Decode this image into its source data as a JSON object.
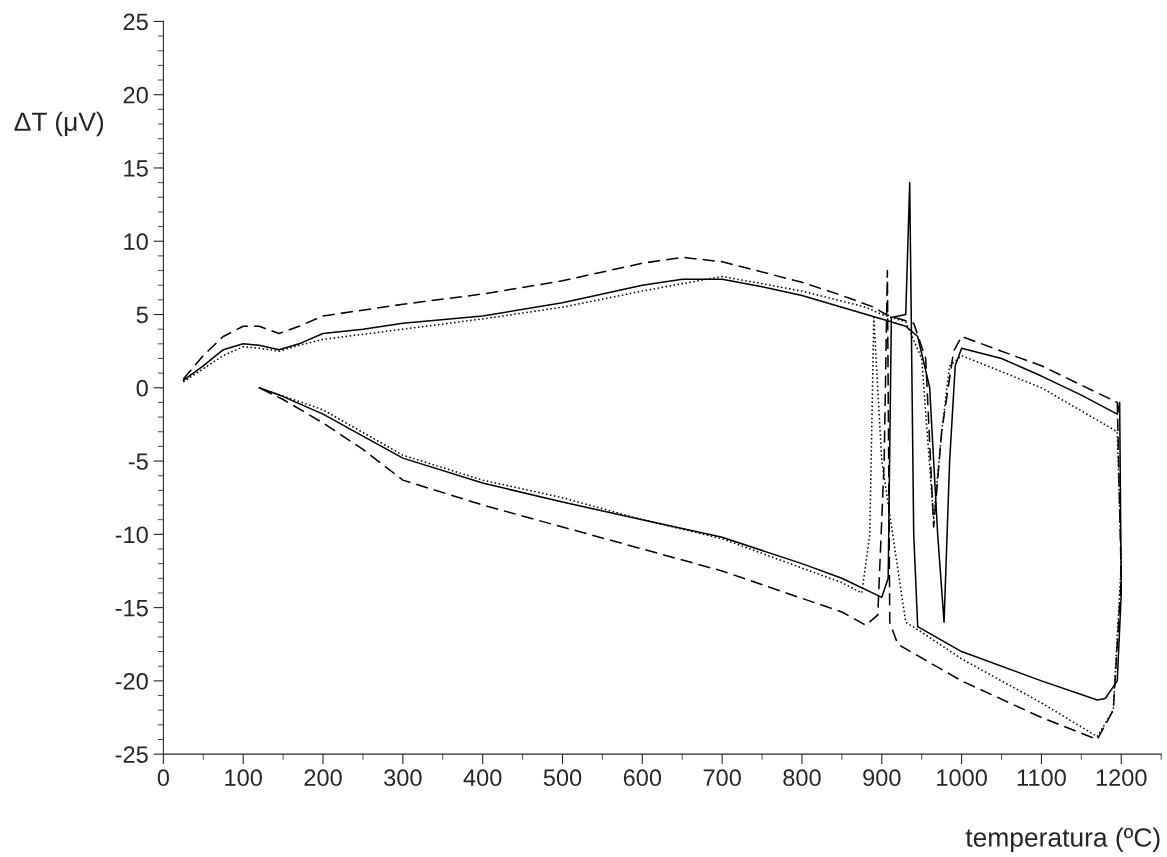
{
  "chart_data": {
    "type": "line",
    "xlabel": "temperatura (ºC)",
    "ylabel": "ΔT (μV)",
    "xlim": [
      0,
      1250
    ],
    "xticks": [
      0,
      100,
      200,
      300,
      400,
      500,
      600,
      700,
      800,
      900,
      1000,
      1100,
      1200
    ],
    "ylim": [
      -25,
      25
    ],
    "yticks": [
      -25,
      -20,
      -15,
      -10,
      -5,
      0,
      5,
      10,
      15,
      20,
      25
    ],
    "grid": false,
    "marker": "none",
    "series": [
      {
        "color": "#000000",
        "line_style": "solid",
        "x": [
          25,
          50,
          75,
          100,
          120,
          145,
          170,
          200,
          250,
          300,
          400,
          500,
          600,
          650,
          700,
          750,
          800,
          850,
          900,
          930,
          945,
          960,
          970,
          978,
          985,
          992,
          1000,
          1050,
          1100,
          1150,
          1195,
          1198,
          1200,
          1195,
          1180,
          1170,
          1100,
          1000,
          945,
          940,
          935,
          930,
          912,
          908,
          900,
          850,
          800,
          700,
          600,
          500,
          400,
          300,
          200,
          150,
          120
        ],
        "values": [
          0.5,
          1.5,
          2.6,
          3.0,
          2.9,
          2.6,
          3.0,
          3.7,
          4.0,
          4.4,
          4.9,
          5.8,
          7.0,
          7.4,
          7.4,
          6.9,
          6.3,
          5.5,
          4.7,
          4.2,
          3.5,
          0,
          -10,
          -16,
          -5,
          1.5,
          2.7,
          2.0,
          0.8,
          -0.5,
          -1.8,
          -1,
          -14,
          -20,
          -21.2,
          -21.3,
          -20,
          -18,
          -16.3,
          -10,
          14,
          5,
          4.8,
          -13,
          -14.3,
          -13,
          -12,
          -10.2,
          -9,
          -7.8,
          -6.5,
          -4.8,
          -1.8,
          -0.6,
          0
        ]
      },
      {
        "color": "#000000",
        "line_style": "dashed",
        "x": [
          25,
          50,
          75,
          100,
          120,
          145,
          170,
          200,
          300,
          400,
          500,
          600,
          650,
          700,
          800,
          850,
          890,
          905,
          940,
          955,
          965,
          975,
          990,
          1000,
          1100,
          1195,
          1200,
          1190,
          1170,
          1100,
          1000,
          920,
          910,
          907,
          903,
          895,
          880,
          850,
          700,
          600,
          500,
          400,
          300,
          250,
          200,
          150,
          120
        ],
        "values": [
          0.6,
          2.2,
          3.5,
          4.2,
          4.2,
          3.7,
          4.2,
          4.9,
          5.7,
          6.4,
          7.3,
          8.5,
          8.9,
          8.6,
          7.2,
          6.3,
          5.5,
          5.0,
          4.4,
          2,
          -9.5,
          -3,
          2.5,
          3.5,
          1.5,
          -1,
          -13,
          -22,
          -24,
          -22.5,
          -20,
          -17.5,
          -16,
          8,
          -5,
          -15.5,
          -16.2,
          -15.3,
          -12.5,
          -11,
          -9.5,
          -8,
          -6.3,
          -4.2,
          -2.4,
          -0.8,
          0
        ]
      },
      {
        "color": "#000000",
        "line_style": "dotted",
        "x": [
          25,
          50,
          75,
          100,
          120,
          145,
          170,
          200,
          300,
          400,
          500,
          600,
          700,
          800,
          880,
          900,
          930,
          950,
          965,
          975,
          985,
          1000,
          1100,
          1195,
          1200,
          1190,
          1170,
          1100,
          1000,
          945,
          930,
          900,
          890,
          885,
          875,
          850,
          700,
          600,
          500,
          400,
          300,
          200,
          120
        ],
        "values": [
          0.4,
          1.3,
          2.2,
          2.8,
          2.7,
          2.5,
          2.9,
          3.3,
          4.0,
          4.7,
          5.5,
          6.6,
          7.6,
          6.6,
          5.5,
          5.0,
          4.5,
          2,
          -9,
          -3,
          1.5,
          2.2,
          0,
          -3,
          -12,
          -22,
          -23.8,
          -21.5,
          -18.5,
          -16.5,
          -16,
          -5,
          4.8,
          -10,
          -14,
          -13.3,
          -10.3,
          -9,
          -7.5,
          -6.3,
          -4.6,
          -1.5,
          0
        ]
      }
    ]
  }
}
